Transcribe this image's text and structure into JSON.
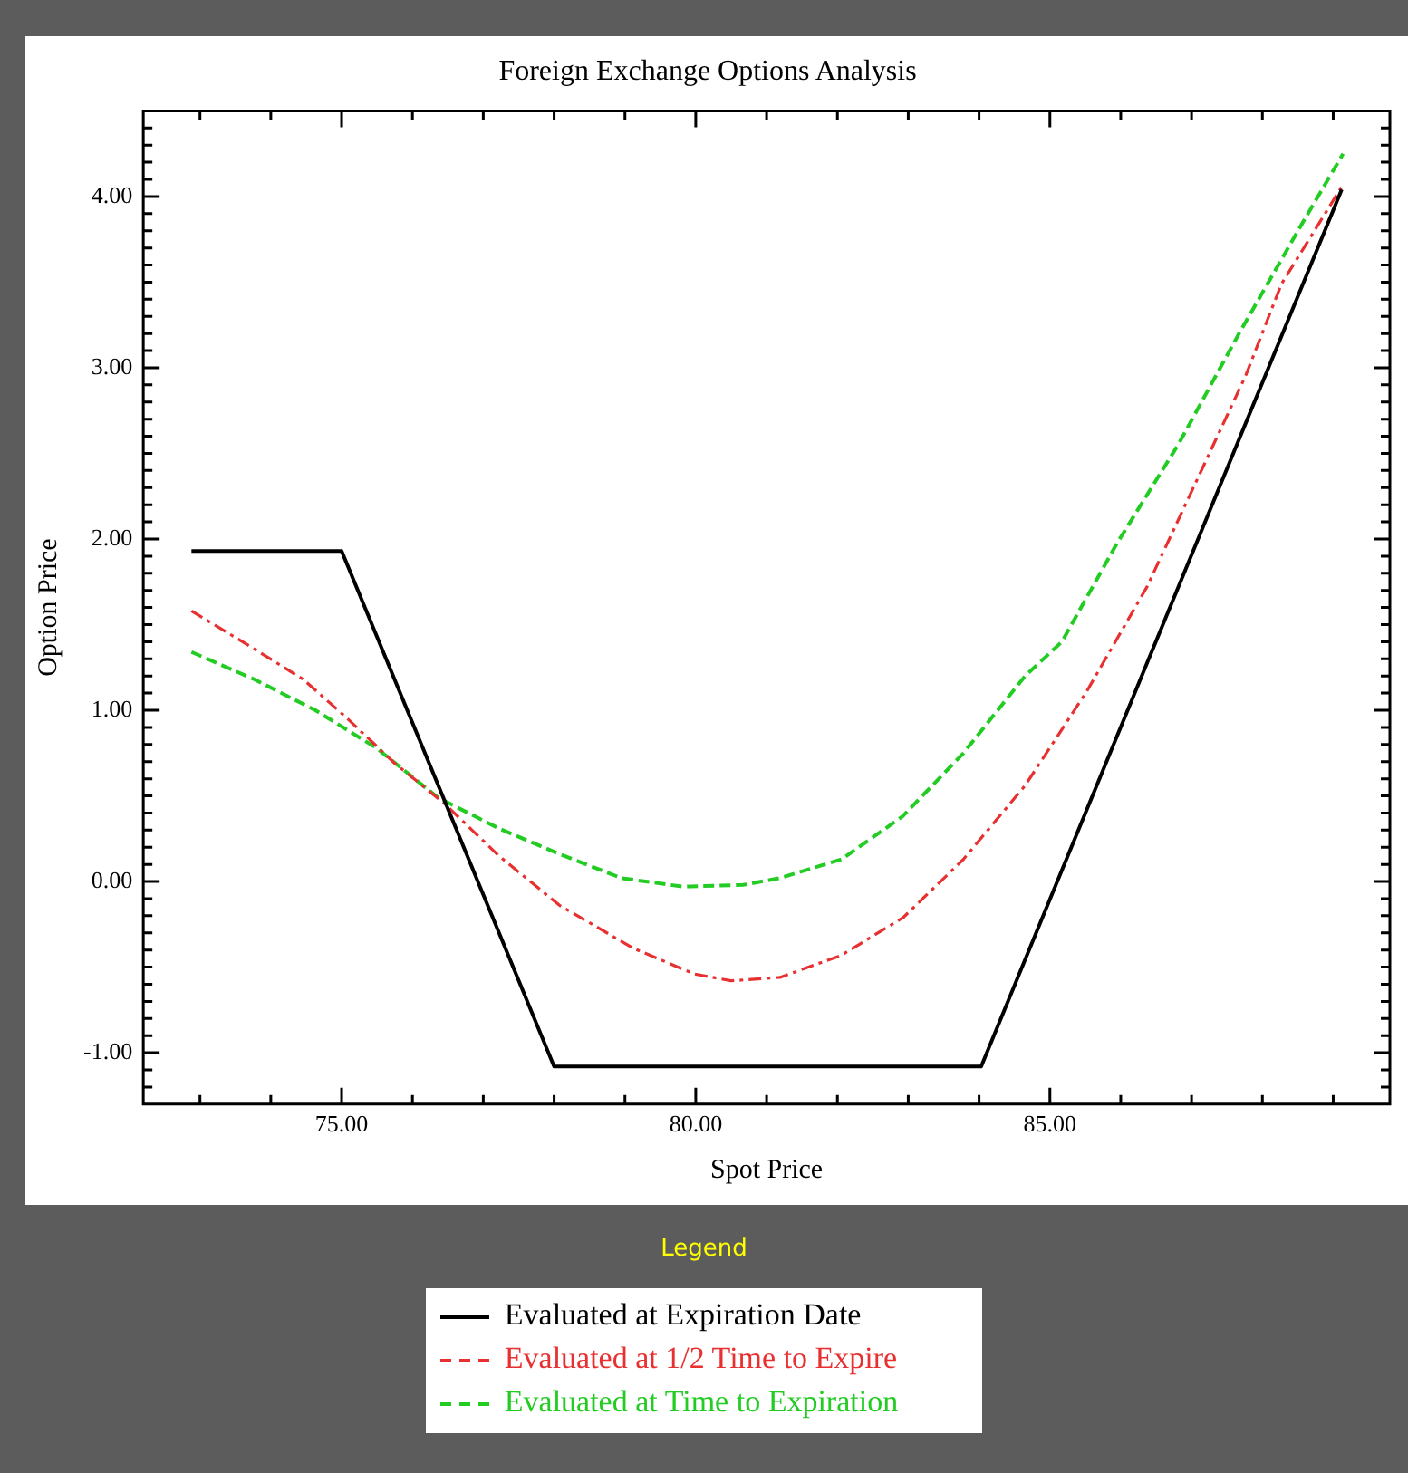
{
  "chart_data": {
    "type": "line",
    "title": "Foreign Exchange Options Analysis",
    "xlabel": "Spot Price",
    "ylabel": "Option Price",
    "legend_title": "Legend",
    "legend": "bottom",
    "grid": false,
    "marker": "none",
    "xlim": [
      72.2,
      89.8
    ],
    "ylim": [
      -1.3,
      4.5
    ],
    "xticks": [
      {
        "value": 73,
        "label": null
      },
      {
        "value": 74,
        "label": null
      },
      {
        "value": 75,
        "label": "75.00"
      },
      {
        "value": 76,
        "label": null
      },
      {
        "value": 77,
        "label": null
      },
      {
        "value": 78,
        "label": null
      },
      {
        "value": 79,
        "label": null
      },
      {
        "value": 80,
        "label": "80.00"
      },
      {
        "value": 81,
        "label": null
      },
      {
        "value": 82,
        "label": null
      },
      {
        "value": 83,
        "label": null
      },
      {
        "value": 84,
        "label": null
      },
      {
        "value": 85,
        "label": "85.00"
      },
      {
        "value": 86,
        "label": null
      },
      {
        "value": 87,
        "label": null
      },
      {
        "value": 88,
        "label": null
      },
      {
        "value": 89,
        "label": null
      }
    ],
    "yticks": [
      {
        "value": -1.2,
        "label": null
      },
      {
        "value": -1.1,
        "label": null
      },
      {
        "value": -1,
        "label": "-1.00"
      },
      {
        "value": -0.9,
        "label": null
      },
      {
        "value": -0.8,
        "label": null
      },
      {
        "value": -0.7,
        "label": null
      },
      {
        "value": -0.6,
        "label": null
      },
      {
        "value": -0.5,
        "label": null
      },
      {
        "value": -0.4,
        "label": null
      },
      {
        "value": -0.3,
        "label": null
      },
      {
        "value": -0.2,
        "label": null
      },
      {
        "value": -0.1,
        "label": null
      },
      {
        "value": 0,
        "label": "0.00"
      },
      {
        "value": 0.1,
        "label": null
      },
      {
        "value": 0.2,
        "label": null
      },
      {
        "value": 0.3,
        "label": null
      },
      {
        "value": 0.4,
        "label": null
      },
      {
        "value": 0.5,
        "label": null
      },
      {
        "value": 0.6,
        "label": null
      },
      {
        "value": 0.7,
        "label": null
      },
      {
        "value": 0.8,
        "label": null
      },
      {
        "value": 0.9,
        "label": null
      },
      {
        "value": 1,
        "label": "1.00"
      },
      {
        "value": 1.1,
        "label": null
      },
      {
        "value": 1.2,
        "label": null
      },
      {
        "value": 1.3,
        "label": null
      },
      {
        "value": 1.4,
        "label": null
      },
      {
        "value": 1.5,
        "label": null
      },
      {
        "value": 1.6,
        "label": null
      },
      {
        "value": 1.7,
        "label": null
      },
      {
        "value": 1.8,
        "label": null
      },
      {
        "value": 1.9,
        "label": null
      },
      {
        "value": 2,
        "label": "2.00"
      },
      {
        "value": 2.1,
        "label": null
      },
      {
        "value": 2.2,
        "label": null
      },
      {
        "value": 2.3,
        "label": null
      },
      {
        "value": 2.4,
        "label": null
      },
      {
        "value": 2.5,
        "label": null
      },
      {
        "value": 2.6,
        "label": null
      },
      {
        "value": 2.7,
        "label": null
      },
      {
        "value": 2.8,
        "label": null
      },
      {
        "value": 2.9,
        "label": null
      },
      {
        "value": 3,
        "label": "3.00"
      },
      {
        "value": 3.1,
        "label": null
      },
      {
        "value": 3.2,
        "label": null
      },
      {
        "value": 3.3,
        "label": null
      },
      {
        "value": 3.4,
        "label": null
      },
      {
        "value": 3.5,
        "label": null
      },
      {
        "value": 3.6,
        "label": null
      },
      {
        "value": 3.7,
        "label": null
      },
      {
        "value": 3.8,
        "label": null
      },
      {
        "value": 3.9,
        "label": null
      },
      {
        "value": 4,
        "label": "4.00"
      },
      {
        "value": 4.1,
        "label": null
      },
      {
        "value": 4.2,
        "label": null
      },
      {
        "value": 4.3,
        "label": null
      },
      {
        "value": 4.4,
        "label": null
      }
    ],
    "series": [
      {
        "name": "Evaluated at Expiration Date",
        "color": "#000000",
        "line_style": "solid",
        "x": [
          72.88,
          75,
          78,
          84.03,
          89.12
        ],
        "values": [
          1.93,
          1.93,
          -1.08,
          -1.08,
          4.04
        ]
      },
      {
        "name": "Evaluated at 1/2 Time to Expire",
        "color": "#e83030",
        "line_style": "dashdot",
        "x": [
          72.88,
          73.68,
          74.46,
          75.06,
          75.75,
          76.44,
          77.22,
          78.08,
          79.12,
          79.98,
          80.5,
          81.19,
          82.06,
          82.93,
          83.78,
          84.65,
          85.52,
          86.37,
          87.15,
          87.76,
          88.27,
          89.14
        ],
        "values": [
          1.58,
          1.38,
          1.18,
          0.96,
          0.69,
          0.46,
          0.15,
          -0.14,
          -0.39,
          -0.54,
          -0.58,
          -0.56,
          -0.43,
          -0.21,
          0.13,
          0.56,
          1.11,
          1.72,
          2.41,
          2.95,
          3.49,
          4.07
        ]
      },
      {
        "name": "Evaluated at Time to Expiration",
        "color": "#22cc22",
        "line_style": "dashed",
        "x": [
          72.88,
          73.77,
          74.63,
          75.49,
          76.36,
          77.22,
          78.08,
          78.95,
          79.82,
          80.67,
          81.19,
          82.06,
          82.92,
          83.78,
          84.65,
          85.17,
          85.94,
          86.81,
          87.67,
          88.53,
          89.14
        ],
        "values": [
          1.34,
          1.18,
          1.0,
          0.78,
          0.49,
          0.31,
          0.16,
          0.02,
          -0.03,
          -0.02,
          0.02,
          0.13,
          0.38,
          0.75,
          1.2,
          1.4,
          1.97,
          2.55,
          3.2,
          3.82,
          4.25
        ]
      }
    ]
  }
}
